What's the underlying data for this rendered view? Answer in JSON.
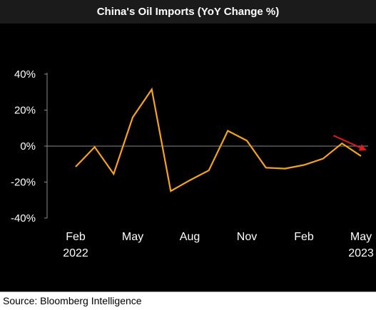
{
  "header": {
    "title": "China's Oil Imports (YoY Change %)"
  },
  "footer": {
    "source": "Source: Bloomberg Intelligence"
  },
  "colors": {
    "line": "#f7a21b",
    "arrow": "#e0191e",
    "background": "#000000",
    "axis": "#8a8a8a",
    "text": "#ffffff"
  },
  "chart_data": {
    "type": "line",
    "title": "China's Oil Imports (YoY Change %)",
    "xlabel": "",
    "ylabel": "",
    "ylim": [
      -40,
      40
    ],
    "grid": false,
    "legend": "none",
    "y_ticks": [
      "40%",
      "20%",
      "0%",
      "-20%",
      "-40%"
    ],
    "y_tick_values": [
      40,
      20,
      0,
      -20,
      -40
    ],
    "x": [
      "2022-02",
      "2022-03",
      "2022-04",
      "2022-05",
      "2022-06",
      "2022-07",
      "2022-08",
      "2022-09",
      "2022-10",
      "2022-11",
      "2022-12",
      "2023-01",
      "2023-02",
      "2023-03",
      "2023-04",
      "2023-05"
    ],
    "x_ticks": [
      {
        "at": "2022-02",
        "label": "Feb",
        "year": "2022"
      },
      {
        "at": "2022-05",
        "label": "May",
        "year": ""
      },
      {
        "at": "2022-08",
        "label": "Aug",
        "year": ""
      },
      {
        "at": "2022-11",
        "label": "Nov",
        "year": ""
      },
      {
        "at": "2023-02",
        "label": "Feb",
        "year": ""
      },
      {
        "at": "2023-05",
        "label": "May",
        "year": "2023"
      }
    ],
    "series": [
      {
        "values": [
          -11.5,
          -0.5,
          -15.5,
          16,
          31.5,
          -25,
          -19,
          -13.5,
          8.5,
          3,
          -12,
          -12.5,
          -10.5,
          -7,
          1.5,
          -5.5
        ]
      }
    ],
    "annotation": {
      "type": "arrow",
      "description": "red downward arrow at latest point",
      "from": "2023-04",
      "to": "2023-05"
    }
  }
}
